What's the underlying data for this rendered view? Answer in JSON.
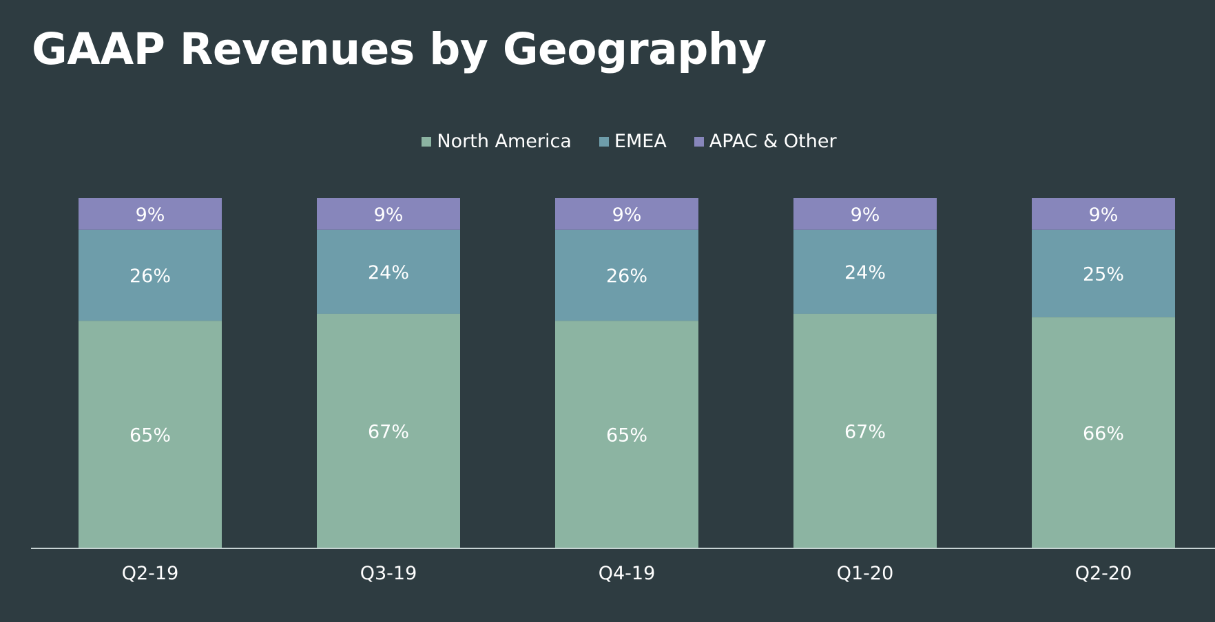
{
  "title": "GAAP Revenues by Geography",
  "colors": {
    "background": "#2e3c41",
    "north_america": "#8cb4a2",
    "emea": "#6e9daa",
    "apac": "#8786bb",
    "axis": "#c8d4d4",
    "text": "#ffffff"
  },
  "chart_data": {
    "type": "bar",
    "stacked": true,
    "title": "GAAP Revenues by Geography",
    "xlabel": "",
    "ylabel": "",
    "ylim": [
      0,
      100
    ],
    "grid": false,
    "legend_position": "top-center",
    "categories": [
      "Q2-19",
      "Q3-19",
      "Q4-19",
      "Q1-20",
      "Q2-20"
    ],
    "series": [
      {
        "name": "North America",
        "color": "#8cb4a2",
        "values": [
          65,
          67,
          65,
          67,
          66
        ],
        "labels": [
          "65%",
          "67%",
          "65%",
          "67%",
          "66%"
        ]
      },
      {
        "name": "EMEA",
        "color": "#6e9daa",
        "values": [
          26,
          24,
          26,
          24,
          25
        ],
        "labels": [
          "26%",
          "24%",
          "26%",
          "24%",
          "25%"
        ]
      },
      {
        "name": "APAC & Other",
        "color": "#8786bb",
        "values": [
          9,
          9,
          9,
          9,
          9
        ],
        "labels": [
          "9%",
          "9%",
          "9%",
          "9%",
          "9%"
        ]
      }
    ]
  }
}
